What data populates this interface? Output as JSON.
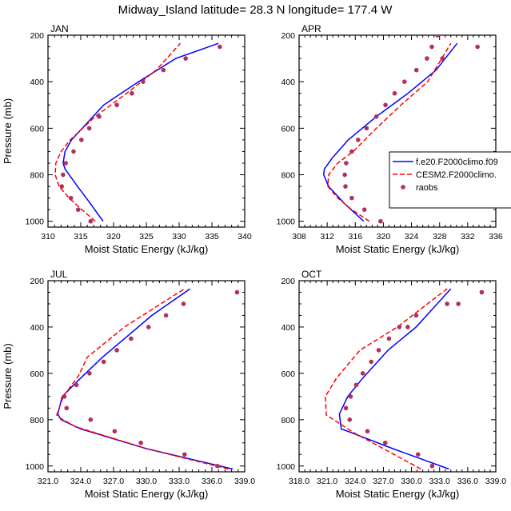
{
  "figure_title": "Midway_Island  latitude= 28.3 N longitude= 177.4 W",
  "legend": {
    "entries": [
      "f.e20.F2000climo.f09",
      "CESM2.F2000climo.",
      "raobs"
    ]
  },
  "colors": {
    "model": "#0000ff",
    "cesm2": "#ff0000",
    "raobs": "#b03060"
  },
  "chart_data": [
    {
      "type": "line",
      "panel": "JAN",
      "xlabel": "Moist Static Energy (kJ/kg)",
      "ylabel": "Pressure (mb)",
      "xlim": [
        310,
        340
      ],
      "ylim": [
        1025,
        200
      ],
      "xticks": [
        "310",
        "315",
        "320",
        "325",
        "330",
        "335",
        "340"
      ],
      "yticks": [
        "200",
        "400",
        "600",
        "800",
        "1000"
      ],
      "series": [
        {
          "name": "f.e20.F2000climo.f09",
          "style": "solid",
          "x": [
            318.4,
            316.5,
            314.5,
            312.6,
            312.3,
            312.6,
            313.6,
            318.5,
            323.8,
            329.5,
            336.0
          ],
          "y": [
            1000,
            925,
            850,
            775,
            750,
            700,
            650,
            500,
            400,
            300,
            235
          ]
        },
        {
          "name": "CESM2.F2000climo.",
          "style": "dashed",
          "x": [
            317.2,
            315.2,
            313.2,
            311.7,
            311.1,
            311.2,
            312.0,
            313.4,
            317.2,
            322.0,
            326.5,
            330.2
          ],
          "y": [
            1000,
            950,
            900,
            850,
            800,
            750,
            700,
            650,
            550,
            450,
            350,
            235
          ]
        },
        {
          "name": "raobs",
          "style": "markers",
          "x": [
            316.5,
            314.6,
            313.5,
            312.1,
            312.3,
            312.7,
            313.9,
            315.1,
            316.3,
            317.8,
            320.5,
            322.8,
            324.5,
            327.6,
            331.0,
            336.2
          ],
          "y": [
            1000,
            950,
            900,
            850,
            800,
            750,
            700,
            650,
            600,
            550,
            500,
            450,
            400,
            350,
            300,
            250
          ]
        }
      ]
    },
    {
      "type": "line",
      "panel": "APR",
      "xlabel": "Moist Static Energy (kJ/kg)",
      "ylabel": "",
      "xlim": [
        308,
        336
      ],
      "ylim": [
        1025,
        200
      ],
      "xticks": [
        "308",
        "312",
        "316",
        "320",
        "324",
        "328",
        "332",
        "336"
      ],
      "yticks": [
        "200",
        "400",
        "600",
        "800",
        "1000"
      ],
      "series": [
        {
          "name": "f.e20.F2000climo.f09",
          "style": "solid",
          "x": [
            317.2,
            314.5,
            312.2,
            311.5,
            311.6,
            312.8,
            315.0,
            319.0,
            323.5,
            327.5,
            330.5
          ],
          "y": [
            1000,
            925,
            850,
            800,
            775,
            725,
            650,
            550,
            450,
            350,
            235
          ]
        },
        {
          "name": "CESM2.F2000climo.",
          "style": "dashed",
          "x": [
            318.0,
            315.5,
            313.5,
            312.1,
            312.2,
            313.5,
            315.7,
            319.0,
            322.5,
            326.3,
            329.6
          ],
          "y": [
            1000,
            950,
            900,
            850,
            800,
            750,
            700,
            600,
            500,
            400,
            235
          ]
        },
        {
          "name": "raobs",
          "style": "markers",
          "x": [
            319.6,
            317.3,
            315.5,
            314.6,
            314.5,
            314.7,
            315.5,
            316.4,
            317.6,
            319.0,
            320.3,
            321.6,
            323.0,
            324.7,
            326.2,
            326.9,
            327.7,
            328.4,
            333.4
          ],
          "y": [
            1000,
            950,
            900,
            850,
            800,
            750,
            700,
            650,
            600,
            550,
            500,
            450,
            400,
            350,
            300,
            250,
            200,
            300,
            250
          ]
        }
      ]
    },
    {
      "type": "line",
      "panel": "JUL",
      "xlabel": "Moist Static Energy (kJ/kg)",
      "ylabel": "Pressure (mb)",
      "xlim": [
        321,
        339
      ],
      "ylim": [
        1025,
        200
      ],
      "xticks": [
        "321.0",
        "324.0",
        "327.0",
        "330.0",
        "333.0",
        "336.0",
        "339.0"
      ],
      "yticks": [
        "200",
        "400",
        "600",
        "800",
        "1000"
      ],
      "series": [
        {
          "name": "f.e20.F2000climo.f09",
          "style": "solid",
          "x": [
            337.9,
            330.0,
            324.0,
            322.2,
            321.9,
            322.3,
            324.0,
            326.0,
            328.0,
            330.5,
            334.0
          ],
          "y": [
            1013,
            925,
            840,
            800,
            775,
            700,
            620,
            530,
            450,
            350,
            235
          ]
        },
        {
          "name": "CESM2.F2000climo.",
          "style": "dashed",
          "x": [
            337.5,
            330.0,
            323.5,
            322.0,
            321.8,
            322.4,
            323.8,
            324.6,
            328.0,
            333.5
          ],
          "y": [
            1013,
            925,
            830,
            790,
            780,
            700,
            610,
            530,
            400,
            235
          ]
        },
        {
          "name": "raobs",
          "style": "markers",
          "x": [
            336.5,
            333.5,
            329.5,
            327.1,
            324.9,
            322.7,
            322.5,
            323.6,
            324.8,
            326.1,
            327.3,
            328.6,
            330.2,
            331.8,
            333.4,
            338.3
          ],
          "y": [
            1000,
            950,
            900,
            850,
            800,
            750,
            700,
            650,
            600,
            550,
            500,
            450,
            400,
            350,
            300,
            250
          ]
        }
      ]
    },
    {
      "type": "line",
      "panel": "OCT",
      "xlabel": "Moist Static Energy (kJ/kg)",
      "ylabel": "",
      "xlim": [
        318,
        339
      ],
      "ylim": [
        1025,
        200
      ],
      "xticks": [
        "318.0",
        "321.0",
        "324.0",
        "327.0",
        "330.0",
        "333.0",
        "336.0",
        "339.0"
      ],
      "yticks": [
        "200",
        "400",
        "600",
        "800",
        "1000"
      ],
      "series": [
        {
          "name": "f.e20.F2000climo.f09",
          "style": "solid",
          "x": [
            334.0,
            328.0,
            323.2,
            322.5,
            322.3,
            323.2,
            324.8,
            327.5,
            330.5,
            334.2
          ],
          "y": [
            1013,
            925,
            850,
            840,
            775,
            700,
            620,
            500,
            400,
            235
          ]
        },
        {
          "name": "CESM2.F2000climo.",
          "style": "dashed",
          "x": [
            331.0,
            327.0,
            324.0,
            320.9,
            320.8,
            322.0,
            324.5,
            328.5,
            333.8
          ],
          "y": [
            1013,
            925,
            860,
            780,
            700,
            620,
            500,
            400,
            235
          ]
        },
        {
          "name": "raobs",
          "style": "markers",
          "x": [
            332.2,
            330.7,
            327.2,
            325.3,
            323.4,
            323.0,
            323.5,
            324.1,
            324.8,
            325.7,
            326.5,
            327.6,
            328.7,
            329.6,
            330.5,
            335.0,
            333.8,
            337.5
          ],
          "y": [
            1000,
            950,
            900,
            850,
            800,
            750,
            700,
            650,
            600,
            550,
            500,
            450,
            400,
            400,
            350,
            300,
            300,
            250
          ]
        }
      ]
    }
  ]
}
